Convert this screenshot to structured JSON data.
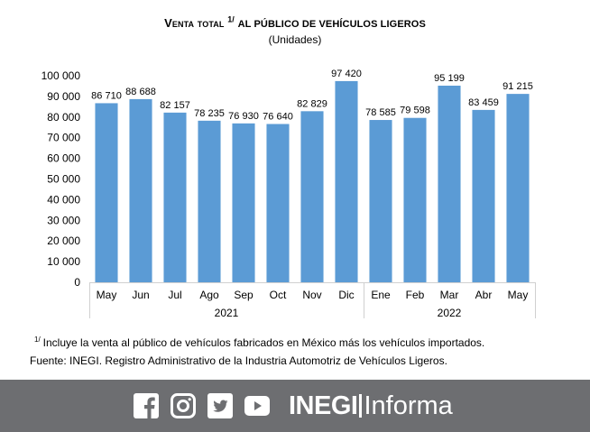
{
  "header": {
    "title_main": "Venta total",
    "title_sup": "1/",
    "title_rest": "al público de vehículos ligeros",
    "subtitle": "(Unidades)"
  },
  "chart_data": {
    "type": "bar",
    "title": "Venta total 1/ al público de vehículos ligeros",
    "subtitle": "(Unidades)",
    "categories": [
      "May",
      "Jun",
      "Jul",
      "Ago",
      "Sep",
      "Oct",
      "Nov",
      "Dic",
      "Ene",
      "Feb",
      "Mar",
      "Abr",
      "May"
    ],
    "values": [
      86710,
      88688,
      82157,
      78235,
      76930,
      76640,
      82829,
      97420,
      78585,
      79598,
      95199,
      83459,
      91215
    ],
    "value_labels": [
      "86 710",
      "88 688",
      "82 157",
      "78 235",
      "76 930",
      "76 640",
      "82 829",
      "97 420",
      "78 585",
      "79 598",
      "95 199",
      "83 459",
      "91 215"
    ],
    "groups": [
      {
        "label": "2021",
        "count": 8
      },
      {
        "label": "2022",
        "count": 5
      }
    ],
    "ylim": [
      0,
      100000
    ],
    "yticks": [
      0,
      10000,
      20000,
      30000,
      40000,
      50000,
      60000,
      70000,
      80000,
      90000,
      100000
    ],
    "ytick_labels": [
      "0",
      "10 000",
      "20 000",
      "30 000",
      "40 000",
      "50 000",
      "60 000",
      "70 000",
      "80 000",
      "90 000",
      "100 000"
    ],
    "xlabel": "",
    "ylabel": "",
    "grid": false,
    "bar_color": "#5b9bd5"
  },
  "notes": {
    "footnote_sup": "1/",
    "footnote_text": "Incluye la venta al público de vehículos fabricados en México más los vehículos importados.",
    "source": "Fuente: INEGI. Registro Administrativo de la Industria Automotriz de Vehículos Ligeros."
  },
  "footer": {
    "icons": [
      "facebook-icon",
      "instagram-icon",
      "twitter-icon",
      "youtube-icon"
    ],
    "brand_strong": "INEGI",
    "brand_light": "Informa",
    "background": "#6d6e71"
  }
}
